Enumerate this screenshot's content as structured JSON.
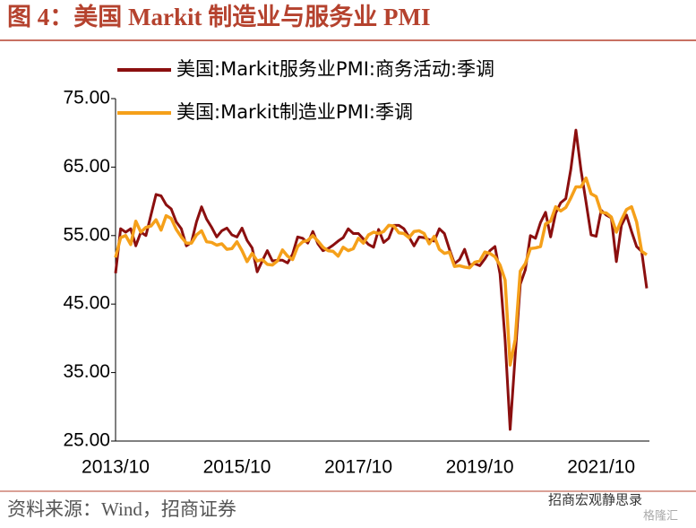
{
  "chart_data": {
    "type": "line",
    "title": "图 4：美国 Markit 制造业与服务业 PMI",
    "source": "资料来源：Wind，招商证券",
    "watermark": [
      "招商宏观静思录",
      "格隆汇"
    ],
    "legend": "upper left",
    "categories": [
      "2013/10",
      null,
      null,
      null,
      null,
      null,
      null,
      null,
      null,
      null,
      null,
      null,
      null,
      null,
      null,
      null,
      null,
      null,
      null,
      null,
      null,
      null,
      null,
      null,
      "2015/10",
      null,
      null,
      null,
      null,
      null,
      null,
      null,
      null,
      null,
      null,
      null,
      null,
      null,
      null,
      null,
      null,
      null,
      null,
      null,
      null,
      null,
      null,
      null,
      "2017/10",
      null,
      null,
      null,
      null,
      null,
      null,
      null,
      null,
      null,
      null,
      null,
      null,
      null,
      null,
      null,
      null,
      null,
      null,
      null,
      null,
      null,
      null,
      null,
      "2019/10",
      null,
      null,
      null,
      null,
      null,
      null,
      null,
      null,
      null,
      null,
      null,
      null,
      null,
      null,
      null,
      null,
      null,
      null,
      null,
      null,
      null,
      null,
      null,
      "2021/10",
      null,
      null,
      null,
      null,
      null,
      null,
      null,
      null,
      null
    ],
    "ylim": [
      25,
      75
    ],
    "yticks": [
      {
        "value": 25,
        "label": "25.00"
      },
      {
        "value": 35,
        "label": "35.00"
      },
      {
        "value": 45,
        "label": "45.00"
      },
      {
        "value": 55,
        "label": "55.00"
      },
      {
        "value": 65,
        "label": "65.00"
      },
      {
        "value": 75,
        "label": "75.00"
      }
    ],
    "series": [
      {
        "name": "美国:Markit服务业PMI:商务活动:季调",
        "color": "#8b0f0f",
        "values": [
          49.5,
          56,
          55.5,
          56,
          53.5,
          55.5,
          55,
          58,
          61,
          60.8,
          59.5,
          58.9,
          57,
          56,
          53.5,
          54,
          57,
          59.2,
          57.4,
          56.2,
          54.8,
          55.7,
          56.1,
          55.1,
          54.8,
          56.1,
          54.3,
          53.2,
          49.7,
          51.3,
          52.8,
          51.3,
          51.4,
          51.4,
          51,
          52.3,
          54.8,
          54.6,
          53.9,
          55.6,
          53.8,
          52.8,
          53.1,
          53.6,
          54.2,
          54.7,
          56,
          55.3,
          55.3,
          54.5,
          53.7,
          53.3,
          55.9,
          54,
          54.6,
          56.5,
          56.5,
          56,
          54.8,
          53.5,
          54.8,
          54.7,
          54.4,
          54.2,
          56,
          55.3,
          53,
          50.9,
          51.5,
          53,
          50.7,
          50.9,
          50.6,
          51.6,
          52.8,
          53.4,
          49.4,
          39.8,
          26.7,
          37.5,
          47.9,
          50,
          55,
          54.6,
          56.9,
          58.4,
          54.8,
          58.3,
          59.8,
          60.4,
          64.7,
          70.4,
          64.6,
          59.9,
          55.1,
          54.9,
          58.7,
          58,
          57.6,
          51.2,
          56.5,
          58,
          55.6,
          53.4,
          52.7,
          47.3
        ]
      },
      {
        "name": "美国:Markit制造业PMI:季调",
        "color": "#f5a01a",
        "values": [
          51.8,
          54.7,
          55,
          53.7,
          57.1,
          55.5,
          56.2,
          56.4,
          57.3,
          55.8,
          57.9,
          57.5,
          55.9,
          54.8,
          53.9,
          53.9,
          55.1,
          55.7,
          54.1,
          54,
          53.6,
          53.8,
          53,
          53.1,
          54.1,
          52.8,
          51.2,
          52.4,
          51.3,
          51.5,
          50.8,
          50.7,
          51.3,
          52.9,
          52,
          51.5,
          53.4,
          54.1,
          54.3,
          55,
          54.2,
          53.3,
          52.8,
          52.7,
          52,
          53.3,
          52.8,
          53.1,
          54.6,
          53.9,
          55.1,
          55.5,
          55.3,
          55.6,
          56.5,
          56.4,
          55.4,
          55.3,
          54.7,
          55.6,
          55.7,
          55.3,
          53.8,
          54.9,
          53,
          52.4,
          52.6,
          50.5,
          50.6,
          50.4,
          50.3,
          51.1,
          51.3,
          52.6,
          52.4,
          51.9,
          50.7,
          48.5,
          36.1,
          39.8,
          49.8,
          50.9,
          53.1,
          53.2,
          53.4,
          56.7,
          57.1,
          59.2,
          58.6,
          59.1,
          60.5,
          62.1,
          62.1,
          63.4,
          61.1,
          60.7,
          58.4,
          58.3,
          57.7,
          55.5,
          57.3,
          58.8,
          59.2,
          57,
          52.7,
          52.2
        ]
      }
    ]
  }
}
